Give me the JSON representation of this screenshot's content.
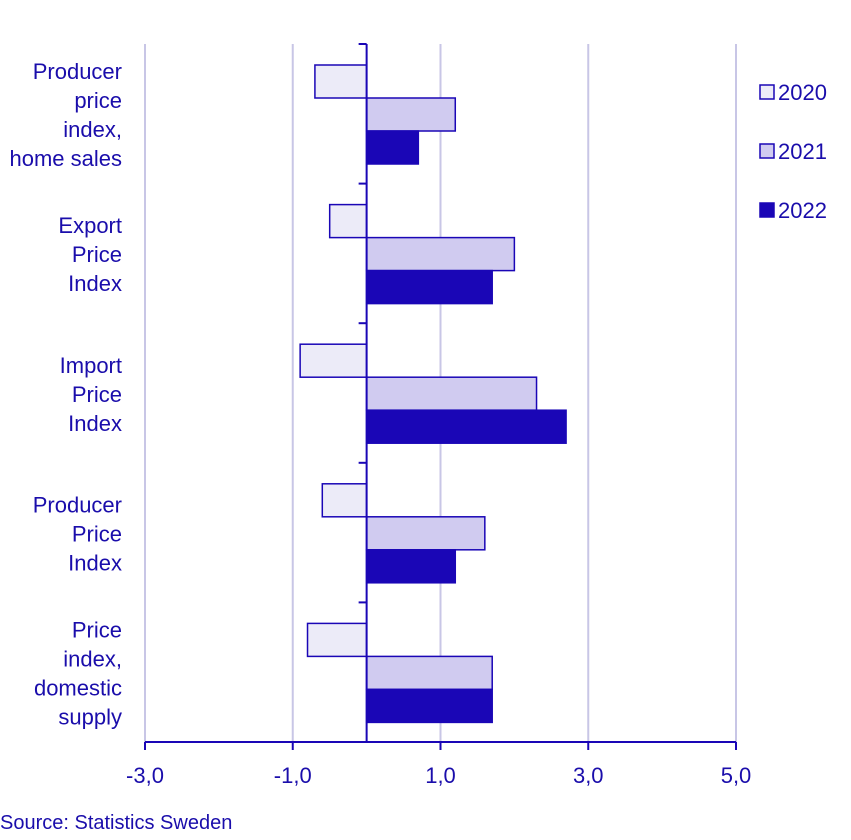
{
  "chart_data": {
    "type": "bar",
    "orientation": "horizontal",
    "categories": [
      [
        "Producer",
        "price",
        "index,",
        "home sales"
      ],
      [
        "Export",
        "Price",
        "Index"
      ],
      [
        "Import",
        "Price",
        "Index"
      ],
      [
        "Producer",
        "Price",
        "Index"
      ],
      [
        "Price",
        "index,",
        "domestic",
        "supply"
      ]
    ],
    "series": [
      {
        "name": "2020",
        "values": [
          -0.7,
          -0.5,
          -0.9,
          -0.6,
          -0.8
        ],
        "color": "#ecebf8"
      },
      {
        "name": "2021",
        "values": [
          1.2,
          2.0,
          2.3,
          1.6,
          1.7
        ],
        "color": "#d0cbf0"
      },
      {
        "name": "2022",
        "values": [
          0.7,
          1.7,
          2.7,
          1.2,
          1.7
        ],
        "color": "#1a06b6"
      }
    ],
    "xlim": [
      -3,
      5
    ],
    "xticks": [
      "-3,0",
      "-1,0",
      "1,0",
      "3,0",
      "5,0"
    ],
    "xtick_values": [
      -3,
      -1,
      1,
      3,
      5
    ],
    "grid": true,
    "legend_position": "right",
    "colors": {
      "text": "#1a0dab",
      "axis": "#1a06b6",
      "grid": "#c8c6e6",
      "bar_border": "#1a06b6"
    }
  },
  "source": "Source: Statistics Sweden"
}
